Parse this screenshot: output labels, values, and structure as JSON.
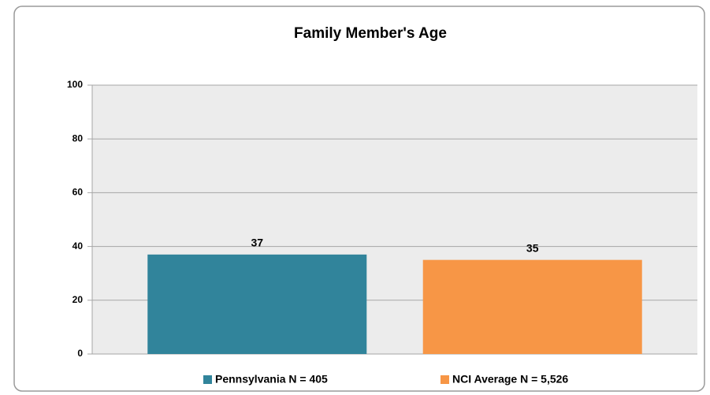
{
  "chart_data": {
    "type": "bar",
    "title": "Family Member's Age",
    "categories": [
      null
    ],
    "series": [
      {
        "name": "Pennsylvania N = 405",
        "color": "#31849b",
        "values": [
          37
        ]
      },
      {
        "name": "NCI Average N = 5,526",
        "color": "#f79646",
        "values": [
          35
        ]
      }
    ],
    "ylim": [
      0,
      100
    ],
    "yticks": [
      0,
      20,
      40,
      60,
      80,
      100
    ],
    "grid": true,
    "legend": "bottom"
  }
}
